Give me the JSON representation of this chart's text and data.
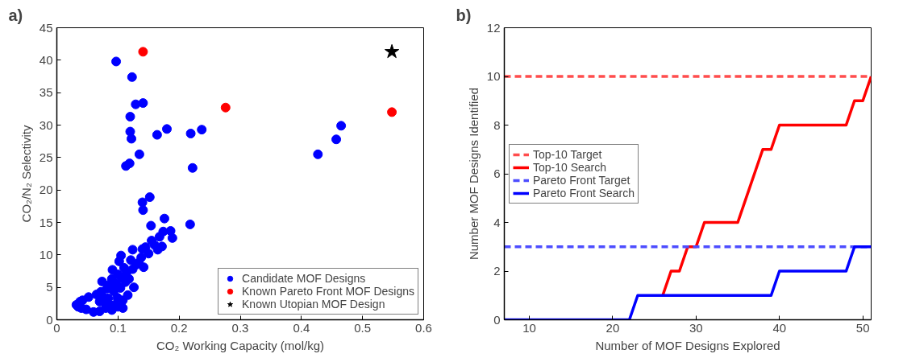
{
  "chart_data": [
    {
      "type": "scatter",
      "title": "a)",
      "xlabel": "CO₂ Working Capacity (mol/kg)",
      "ylabel": "CO₂/N₂ Selectivity",
      "xlim": [
        0,
        0.6
      ],
      "ylim": [
        0,
        45
      ],
      "xticks": [
        0,
        0.1,
        0.2,
        0.3,
        0.4,
        0.5,
        0.6
      ],
      "yticks": [
        0,
        5,
        10,
        15,
        20,
        25,
        30,
        35,
        40,
        45
      ],
      "grid": false,
      "legend": "bottom right",
      "series": [
        {
          "name": "Candidate MOF Designs",
          "color": "#0000ff",
          "marker": "circle",
          "x": [
            0.097,
            0.123,
            0.129,
            0.141,
            0.12,
            0.12,
            0.122,
            0.135,
            0.113,
            0.119,
            0.164,
            0.18,
            0.219,
            0.237,
            0.222,
            0.427,
            0.457,
            0.465,
            0.14,
            0.152,
            0.141,
            0.176,
            0.154,
            0.218,
            0.174,
            0.186,
            0.189,
            0.165,
            0.124,
            0.105,
            0.032,
            0.035,
            0.038,
            0.04,
            0.042,
            0.048,
            0.052,
            0.065,
            0.07,
            0.072,
            0.074,
            0.076,
            0.078,
            0.08,
            0.082,
            0.084,
            0.086,
            0.088,
            0.09,
            0.091,
            0.093,
            0.095,
            0.097,
            0.099,
            0.1,
            0.102,
            0.104,
            0.106,
            0.108,
            0.11,
            0.112,
            0.114,
            0.116,
            0.118,
            0.121,
            0.124,
            0.126,
            0.13,
            0.134,
            0.138,
            0.14,
            0.142,
            0.145,
            0.15,
            0.155,
            0.16,
            0.168,
            0.172,
            0.06,
            0.07,
            0.09,
            0.1,
            0.108
          ],
          "values": [
            39.8,
            37.4,
            33.2,
            33.4,
            31.3,
            29.0,
            27.9,
            25.5,
            23.7,
            24.1,
            28.5,
            29.4,
            28.7,
            29.3,
            23.4,
            25.5,
            27.8,
            29.9,
            18.1,
            18.9,
            16.9,
            15.6,
            14.5,
            14.7,
            13.6,
            13.7,
            12.6,
            10.8,
            10.8,
            9.9,
            2.3,
            2.0,
            2.8,
            1.8,
            3.0,
            1.6,
            3.5,
            3.9,
            2.8,
            4.3,
            5.9,
            3.5,
            2.7,
            1.8,
            4.8,
            3.3,
            5.4,
            2.2,
            6.3,
            7.7,
            4.4,
            2.3,
            5.6,
            3.4,
            7.0,
            9.0,
            4.9,
            6.5,
            3.0,
            8.0,
            5.8,
            7.3,
            3.8,
            6.3,
            9.2,
            7.8,
            5.0,
            8.5,
            8.8,
            9.6,
            10.9,
            8.1,
            11.2,
            10.2,
            12.2,
            11.5,
            12.8,
            11.3,
            1.2,
            1.3,
            1.5,
            2.0,
            1.8
          ]
        },
        {
          "name": "Known Pareto Front MOF Designs",
          "color": "#ff0000",
          "marker": "circle",
          "x": [
            0.141,
            0.276,
            0.548
          ],
          "values": [
            41.3,
            32.7,
            32.0
          ]
        },
        {
          "name": "Known Utopian MOF Design",
          "color": "#000000",
          "marker": "star",
          "x": [
            0.548
          ],
          "values": [
            41.3
          ]
        }
      ]
    },
    {
      "type": "line",
      "title": "b)",
      "xlabel": "Number of MOF Designs Explored",
      "ylabel": "Number MOF Designs Identified",
      "xlim": [
        7,
        51
      ],
      "ylim": [
        0,
        12
      ],
      "xticks": [
        10,
        20,
        30,
        40,
        50
      ],
      "yticks": [
        0,
        2,
        4,
        6,
        8,
        10,
        12
      ],
      "grid": false,
      "legend": "left",
      "marker": "none",
      "series": [
        {
          "name": "Top-10 Target",
          "color": "#ff4d4d",
          "line_style": "dashed",
          "x": [
            7,
            51
          ],
          "values": [
            10,
            10
          ]
        },
        {
          "name": "Top-10 Search",
          "color": "#ff0000",
          "line_style": "solid",
          "x": [
            26,
            27,
            28,
            29,
            30,
            31,
            35,
            38,
            39,
            40,
            48,
            49,
            50,
            51
          ],
          "values": [
            1,
            2,
            2,
            3,
            3,
            4,
            4,
            7,
            7,
            8,
            8,
            9,
            9,
            10
          ]
        },
        {
          "name": "Pareto Front Target",
          "color": "#4d4dff",
          "line_style": "dashed",
          "x": [
            7,
            51
          ],
          "values": [
            3,
            3
          ]
        },
        {
          "name": "Pareto Front Search",
          "color": "#0000ff",
          "line_style": "solid",
          "x": [
            7,
            22,
            23,
            39,
            40,
            48,
            49,
            51
          ],
          "values": [
            0,
            0,
            1,
            1,
            2,
            2,
            3,
            3
          ]
        }
      ]
    }
  ]
}
